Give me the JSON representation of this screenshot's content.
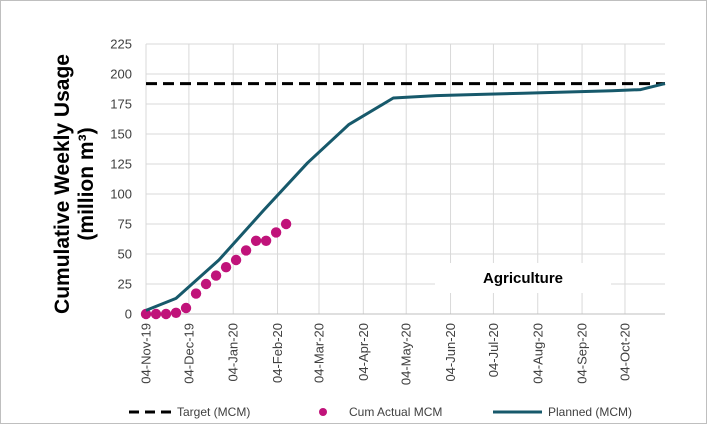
{
  "chart_data": {
    "type": "line",
    "title": "",
    "xlabel": "",
    "ylabel": "Cumulative Weekly Usage",
    "ylabel_line2": "(million m³)",
    "annotation": "Agriculture",
    "ylim": [
      0,
      225
    ],
    "yticks": [
      0,
      25,
      50,
      75,
      100,
      125,
      150,
      175,
      200,
      225
    ],
    "xlim": [
      "2019-11-04",
      "2020-11-01"
    ],
    "xtick_labels": [
      "04-Nov-19",
      "04-Dec-19",
      "04-Jan-20",
      "04-Feb-20",
      "04-Mar-20",
      "04-Apr-20",
      "04-May-20",
      "04-Jun-20",
      "04-Jul-20",
      "04-Aug-20",
      "04-Sep-20",
      "04-Oct-20"
    ],
    "xtick_dates": [
      "2019-11-04",
      "2019-12-04",
      "2020-01-04",
      "2020-02-04",
      "2020-03-04",
      "2020-04-04",
      "2020-05-04",
      "2020-06-04",
      "2020-07-04",
      "2020-08-04",
      "2020-09-04",
      "2020-10-04"
    ],
    "grid": true,
    "legend_position": "bottom",
    "series": [
      {
        "name": "Target (MCM)",
        "kind": "dashed-line",
        "color": "#000000",
        "x": [
          "2019-11-04",
          "2020-11-01"
        ],
        "y": [
          192,
          192
        ]
      },
      {
        "name": "Cum Actual MCM",
        "kind": "scatter",
        "color": "#c0137a",
        "x": [
          "2019-11-04",
          "2019-11-11",
          "2019-11-18",
          "2019-11-25",
          "2019-12-02",
          "2019-12-09",
          "2019-12-16",
          "2019-12-23",
          "2019-12-30",
          "2020-01-06",
          "2020-01-13",
          "2020-01-20",
          "2020-01-27",
          "2020-02-03",
          "2020-02-10"
        ],
        "y": [
          0,
          0,
          0,
          1,
          5,
          17,
          25,
          32,
          39,
          45,
          53,
          61,
          61,
          68,
          75
        ]
      },
      {
        "name": "Planned (MCM)",
        "kind": "line",
        "color": "#17596b",
        "x": [
          "2019-11-04",
          "2019-11-25",
          "2019-12-25",
          "2020-01-25",
          "2020-02-25",
          "2020-03-25",
          "2020-04-25",
          "2020-05-25",
          "2020-06-25",
          "2020-07-25",
          "2020-08-25",
          "2020-09-25",
          "2020-10-15",
          "2020-11-01"
        ],
        "y": [
          3,
          13,
          45,
          86,
          126,
          158,
          180,
          182,
          183,
          184,
          185,
          186,
          187,
          192
        ]
      }
    ]
  }
}
